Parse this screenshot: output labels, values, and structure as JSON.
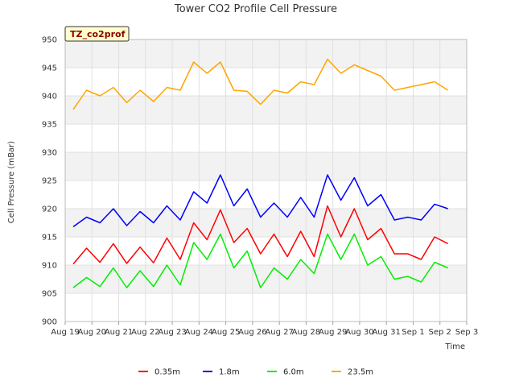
{
  "chart_data": {
    "type": "line",
    "title": "Tower CO2 Profile Cell Pressure",
    "xlabel": "Time",
    "ylabel": "Cell Pressure (mBar)",
    "tag": "TZ_co2prof",
    "ylim": [
      900,
      950
    ],
    "xlim": [
      "Aug 19",
      "Sep 3"
    ],
    "x_ticks": [
      "Aug 19",
      "Aug 20",
      "Aug 21",
      "Aug 22",
      "Aug 23",
      "Aug 24",
      "Aug 25",
      "Aug 26",
      "Aug 27",
      "Aug 28",
      "Aug 29",
      "Aug 30",
      "Aug 31",
      "Sep 1",
      "Sep 2",
      "Sep 3"
    ],
    "y_ticks": [
      900,
      905,
      910,
      915,
      920,
      925,
      930,
      935,
      940,
      945,
      950
    ],
    "grid": true,
    "legend_position": "bottom",
    "x": [
      "Aug 19",
      "Aug 19 12:00",
      "Aug 20",
      "Aug 20 12:00",
      "Aug 21",
      "Aug 21 12:00",
      "Aug 22",
      "Aug 22 12:00",
      "Aug 23",
      "Aug 23 12:00",
      "Aug 24",
      "Aug 24 12:00",
      "Aug 25",
      "Aug 25 12:00",
      "Aug 26",
      "Aug 26 12:00",
      "Aug 27",
      "Aug 27 12:00",
      "Aug 28",
      "Aug 28 12:00",
      "Aug 29",
      "Aug 29 12:00",
      "Aug 30",
      "Aug 30 12:00",
      "Aug 31",
      "Aug 31 12:00",
      "Sep 1",
      "Sep 1 12:00",
      "Sep 2"
    ],
    "series": [
      {
        "name": "0.35m",
        "color": "#ff0000",
        "values": [
          910.2,
          913.0,
          910.5,
          913.8,
          910.3,
          913.2,
          910.4,
          914.8,
          911.0,
          917.5,
          914.5,
          919.8,
          914.0,
          916.5,
          912.0,
          915.5,
          911.5,
          916.0,
          911.5,
          920.5,
          915.0,
          920.0,
          914.5,
          916.5,
          912.0,
          912.0,
          911.0,
          915.0,
          913.8
        ]
      },
      {
        "name": "1.8m",
        "color": "#0000ff",
        "values": [
          916.8,
          918.5,
          917.5,
          920.0,
          917.0,
          919.5,
          917.5,
          920.5,
          918.0,
          923.0,
          921.0,
          926.0,
          920.5,
          923.5,
          918.5,
          921.0,
          918.5,
          922.0,
          918.5,
          926.0,
          921.5,
          925.5,
          920.5,
          922.5,
          918.0,
          918.5,
          918.0,
          920.8,
          920.0
        ]
      },
      {
        "name": "6.0m",
        "color": "#00ee00",
        "values": [
          906.0,
          907.8,
          906.2,
          909.5,
          906.0,
          909.0,
          906.2,
          910.0,
          906.5,
          914.0,
          911.0,
          915.5,
          909.5,
          912.5,
          906.0,
          909.5,
          907.5,
          911.0,
          908.5,
          915.5,
          911.0,
          915.5,
          910.0,
          911.5,
          907.5,
          908.0,
          907.0,
          910.5,
          909.5
        ]
      },
      {
        "name": "23.5m",
        "color": "#ffa500",
        "values": [
          937.6,
          941.0,
          940.0,
          941.5,
          938.8,
          941.0,
          939.0,
          941.5,
          941.0,
          946.0,
          944.0,
          946.0,
          941.0,
          940.8,
          938.5,
          941.0,
          940.5,
          942.5,
          942.0,
          946.5,
          944.0,
          945.5,
          944.5,
          943.5,
          941.0,
          941.5,
          942.0,
          942.5,
          941.0
        ]
      }
    ]
  }
}
